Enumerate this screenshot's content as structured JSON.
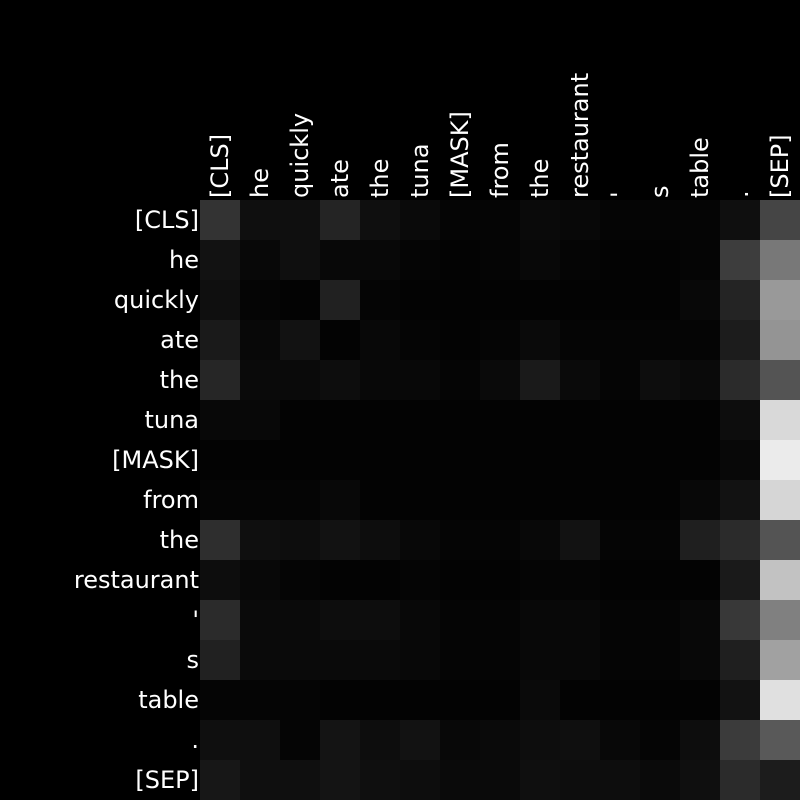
{
  "chart_data": {
    "type": "heatmap",
    "title": "",
    "xlabel": "",
    "ylabel": "",
    "colormap": "grayscale",
    "background": "#000000",
    "x_tokens": [
      "[CLS]",
      "he",
      "quickly",
      "ate",
      "the",
      "tuna",
      "[MASK]",
      "from",
      "the",
      "restaurant",
      "'",
      "s",
      "table",
      ".",
      "[SEP]"
    ],
    "y_tokens": [
      "[CLS]",
      "he",
      "quickly",
      "ate",
      "the",
      "tuna",
      "[MASK]",
      "from",
      "the",
      "restaurant",
      "'",
      "s",
      "table",
      ".",
      "[SEP]"
    ],
    "values": [
      [
        0.2,
        0.06,
        0.06,
        0.14,
        0.06,
        0.04,
        0.02,
        0.02,
        0.04,
        0.03,
        0.02,
        0.02,
        0.02,
        0.06,
        0.27
      ],
      [
        0.07,
        0.03,
        0.06,
        0.03,
        0.03,
        0.02,
        0.01,
        0.02,
        0.03,
        0.02,
        0.01,
        0.01,
        0.02,
        0.24,
        0.47
      ],
      [
        0.06,
        0.02,
        0.01,
        0.13,
        0.02,
        0.01,
        0.01,
        0.01,
        0.01,
        0.01,
        0.01,
        0.01,
        0.03,
        0.14,
        0.6
      ],
      [
        0.1,
        0.03,
        0.07,
        0.01,
        0.03,
        0.02,
        0.01,
        0.02,
        0.04,
        0.02,
        0.02,
        0.02,
        0.02,
        0.11,
        0.58
      ],
      [
        0.15,
        0.04,
        0.04,
        0.05,
        0.03,
        0.03,
        0.02,
        0.04,
        0.1,
        0.04,
        0.02,
        0.05,
        0.04,
        0.17,
        0.33
      ],
      [
        0.03,
        0.03,
        0.01,
        0.01,
        0.01,
        0.01,
        0.01,
        0.01,
        0.01,
        0.01,
        0.01,
        0.01,
        0.01,
        0.05,
        0.85
      ],
      [
        0.01,
        0.01,
        0.01,
        0.01,
        0.01,
        0.01,
        0.01,
        0.01,
        0.01,
        0.01,
        0.01,
        0.01,
        0.01,
        0.03,
        0.92
      ],
      [
        0.02,
        0.02,
        0.02,
        0.03,
        0.01,
        0.01,
        0.01,
        0.01,
        0.01,
        0.01,
        0.01,
        0.01,
        0.03,
        0.07,
        0.84
      ],
      [
        0.18,
        0.06,
        0.05,
        0.07,
        0.05,
        0.03,
        0.02,
        0.02,
        0.03,
        0.07,
        0.02,
        0.02,
        0.12,
        0.17,
        0.33
      ],
      [
        0.05,
        0.03,
        0.02,
        0.01,
        0.01,
        0.02,
        0.01,
        0.01,
        0.02,
        0.02,
        0.01,
        0.01,
        0.01,
        0.1,
        0.76
      ],
      [
        0.17,
        0.04,
        0.04,
        0.05,
        0.05,
        0.03,
        0.02,
        0.02,
        0.03,
        0.03,
        0.02,
        0.02,
        0.03,
        0.22,
        0.5
      ],
      [
        0.13,
        0.04,
        0.04,
        0.04,
        0.04,
        0.03,
        0.02,
        0.02,
        0.03,
        0.03,
        0.02,
        0.02,
        0.03,
        0.12,
        0.63
      ],
      [
        0.02,
        0.02,
        0.02,
        0.01,
        0.01,
        0.01,
        0.01,
        0.01,
        0.04,
        0.01,
        0.01,
        0.01,
        0.01,
        0.07,
        0.88
      ],
      [
        0.06,
        0.06,
        0.02,
        0.08,
        0.05,
        0.07,
        0.03,
        0.04,
        0.05,
        0.06,
        0.03,
        0.02,
        0.05,
        0.23,
        0.35
      ],
      [
        0.09,
        0.06,
        0.06,
        0.08,
        0.06,
        0.05,
        0.04,
        0.04,
        0.06,
        0.05,
        0.05,
        0.04,
        0.06,
        0.17,
        0.11
      ]
    ]
  }
}
